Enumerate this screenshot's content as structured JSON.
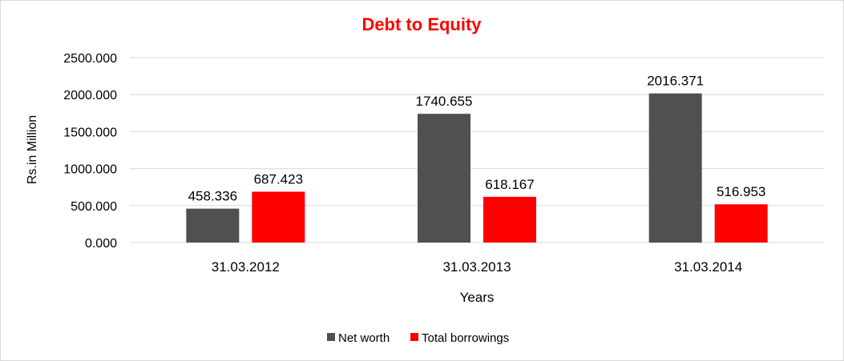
{
  "chart_data": {
    "type": "bar",
    "title": "Debt to Equity",
    "xlabel": "Years",
    "ylabel": "Rs.in Million",
    "categories": [
      "31.03.2012",
      "31.03.2013",
      "31.03.2014"
    ],
    "series": [
      {
        "name": "Net worth",
        "color": "#505050",
        "values": [
          458.336,
          1740.655,
          2016.371
        ],
        "labels": [
          "458.336",
          "1740.655",
          "2016.371"
        ]
      },
      {
        "name": "Total borrowings",
        "color": "#ff0000",
        "values": [
          687.423,
          618.167,
          516.953
        ],
        "labels": [
          "687.423",
          "618.167",
          "516.953"
        ]
      }
    ],
    "ylim": [
      0,
      2500
    ],
    "yticks": [
      "0.000",
      "500.000",
      "1000.000",
      "1500.000",
      "2000.000",
      "2500.000"
    ],
    "grid": true,
    "legend_position": "bottom",
    "title_color": "#ff0000"
  }
}
